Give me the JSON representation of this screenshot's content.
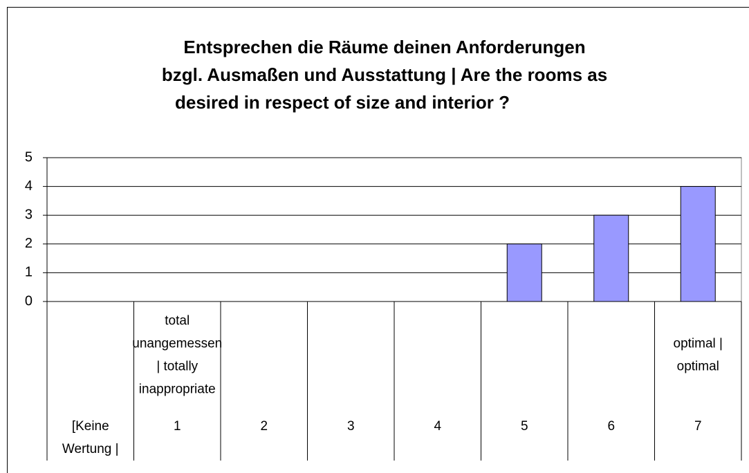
{
  "chart_data": {
    "type": "bar",
    "title": [
      "Entsprechen die Räume deinen Anforderungen",
      "bzgl. Ausmaßen und Ausstattung | Are the rooms as",
      "desired in respect of size and interior ?"
    ],
    "categories": [
      "[Keine Wertung |",
      "1",
      "2",
      "3",
      "4",
      "5",
      "6",
      "7"
    ],
    "super_categories": [
      null,
      "total unangemessen | totally inappropriate",
      null,
      null,
      null,
      null,
      null,
      "optimal | optimal"
    ],
    "values": [
      0,
      0,
      0,
      0,
      0,
      2,
      3,
      4
    ],
    "color": "#9999ff",
    "ylim": [
      0,
      5
    ],
    "yticks": [
      0,
      1,
      2,
      3,
      4,
      5
    ],
    "grid": true
  }
}
